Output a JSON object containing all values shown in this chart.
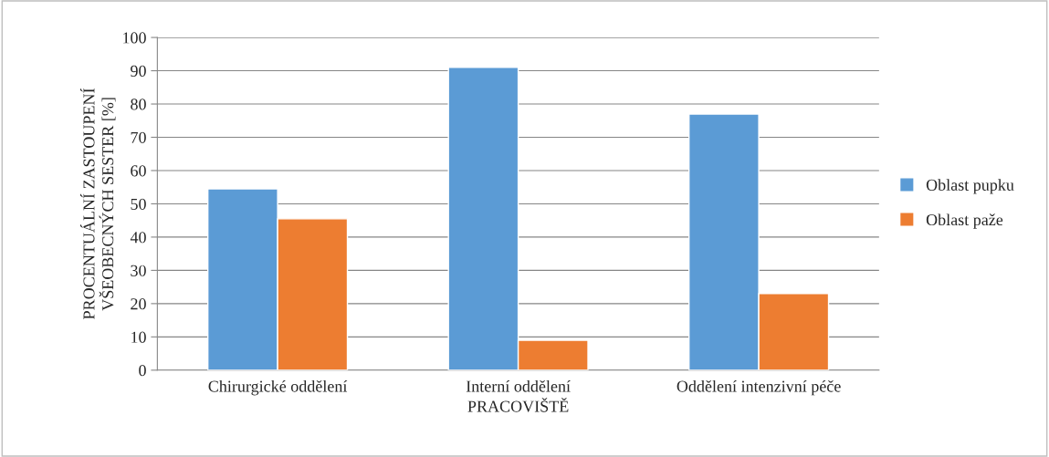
{
  "chart_data": {
    "type": "bar",
    "categories": [
      "Chirurgické oddělení",
      "Interní oddělení",
      "Oddělení intenzivní péče"
    ],
    "series": [
      {
        "name": "Oblast pupku",
        "color": "#5b9bd5",
        "values": [
          54.5,
          91,
          77
        ]
      },
      {
        "name": "Oblast paže",
        "color": "#ed7d31",
        "values": [
          45.5,
          9,
          23
        ]
      }
    ],
    "xlabel": "PRACOVIŠTĚ",
    "ylabel": "PROCENTUÁLNÍ ZASTOUPENÍ\nVŠEOBECNÝCH SESTER [%]",
    "ylim": [
      0,
      100
    ],
    "yticks": [
      0,
      10,
      20,
      30,
      40,
      50,
      60,
      70,
      80,
      90,
      100
    ],
    "grid": "y",
    "legend": "right"
  }
}
